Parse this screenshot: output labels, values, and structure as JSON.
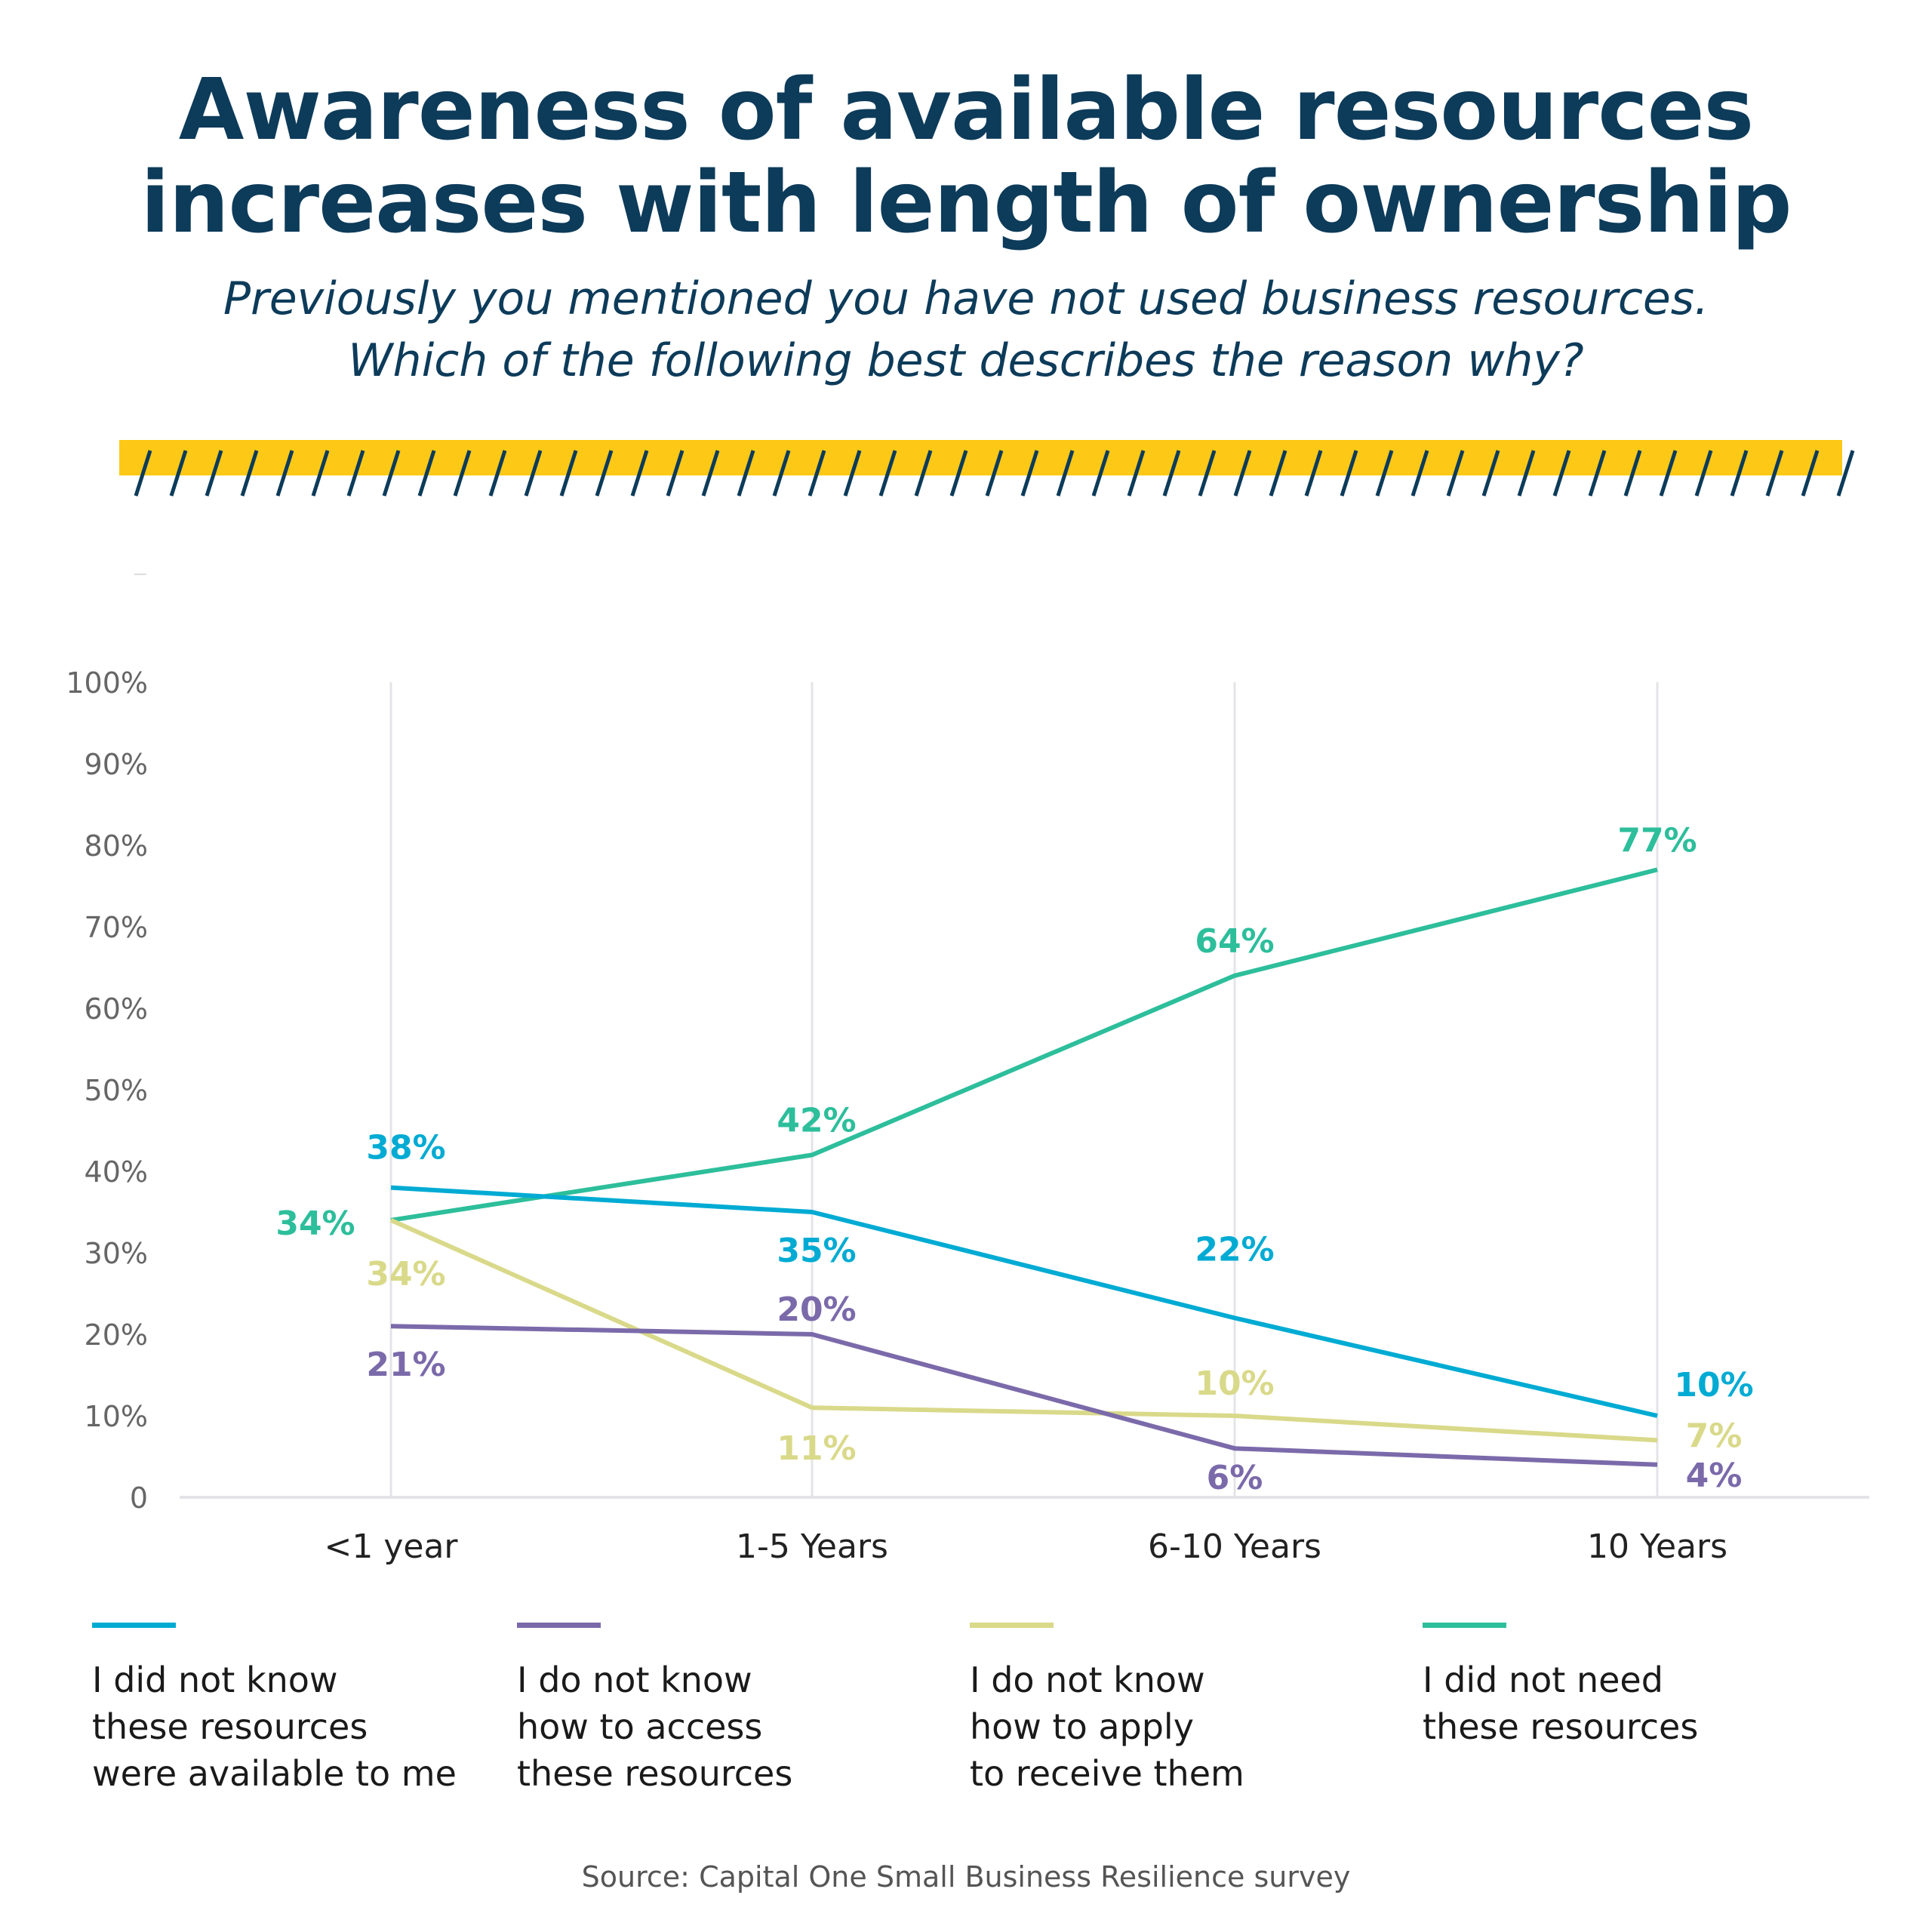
{
  "title": [
    "Awareness of available resources",
    "increases with length of ownership"
  ],
  "subtitle": [
    "Previously you mentioned you have not used business resources.",
    "Which of the following best describes the reason why?"
  ],
  "colors": {
    "navy": "#0d3b5a",
    "banner": "#fdc916",
    "grid": "#e4e4e8",
    "tick_text": "#666666"
  },
  "source": "Source: Capital One Small Business Resilience survey",
  "chart_data": {
    "type": "line",
    "categories": [
      "<1 year",
      "1-5 Years",
      "6-10 Years",
      "10 Years"
    ],
    "ylim": [
      0,
      100
    ],
    "yticks": [
      "0",
      "10%",
      "20%",
      "30%",
      "40%",
      "50%",
      "60%",
      "70%",
      "80%",
      "90%",
      "100%"
    ],
    "grid": "vertical lines at categories",
    "legend_placement": "bottom",
    "series": [
      {
        "name": "I did not know these resources were available to me",
        "legend_lines": [
          "I did not know",
          "these resources",
          "were available to me"
        ],
        "color": "#00abd3",
        "values": [
          38,
          35,
          22,
          10
        ],
        "labels": [
          "38%",
          "35%",
          "22%",
          "10%"
        ]
      },
      {
        "name": "I do not know how to access these resources",
        "legend_lines": [
          "I do not know",
          "how to access",
          "these resources"
        ],
        "color": "#7b6aaa",
        "values": [
          21,
          20,
          6,
          4
        ],
        "labels": [
          "21%",
          "20%",
          "6%",
          "4%"
        ]
      },
      {
        "name": "I do not know how to apply to receive them",
        "legend_lines": [
          "I do not know",
          "how to apply",
          "to receive them"
        ],
        "color": "#d9d98a",
        "values": [
          34,
          11,
          10,
          7
        ],
        "labels": [
          "34%",
          "11%",
          "10%",
          "7%"
        ]
      },
      {
        "name": "I did not need these resources",
        "legend_lines": [
          "I did not need",
          "these resources"
        ],
        "color": "#2dbe9b",
        "values": [
          34,
          42,
          64,
          77
        ],
        "labels": [
          "34%",
          "42%",
          "64%",
          "77%"
        ]
      }
    ]
  }
}
